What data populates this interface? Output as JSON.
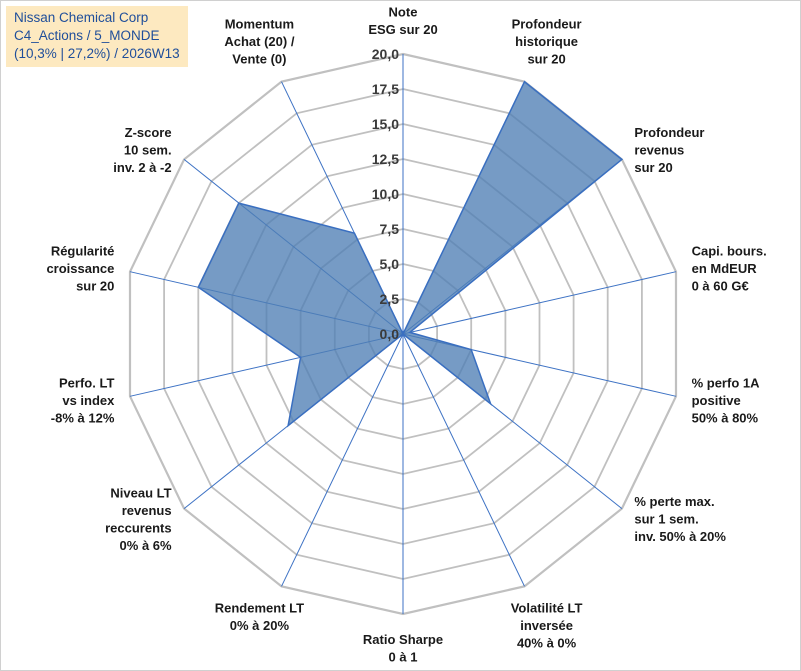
{
  "title": {
    "line1": "Nissan Chemical Corp",
    "line2": "C4_Actions / 5_MONDE",
    "line3": "(10,3% | 27,2%) / 2026W13"
  },
  "colors": {
    "fill": "#4f7fb5",
    "stroke": "#3a6fc0",
    "grid": "#c0c0c0",
    "spoke": "#3d72c4",
    "title_bg": "#fde9c0",
    "title_text": "#1f4e9a"
  },
  "chart_data": {
    "type": "radar",
    "range": [
      0,
      20
    ],
    "ticks": [
      "0,0",
      "2,5",
      "5,0",
      "7,5",
      "10,0",
      "12,5",
      "15,0",
      "17,5",
      "20,0"
    ],
    "tick_values": [
      0,
      2.5,
      5,
      7.5,
      10,
      12.5,
      15,
      17.5,
      20
    ],
    "axes": [
      {
        "id": "esg",
        "label": [
          "Note",
          "ESG sur 20"
        ],
        "value": 0
      },
      {
        "id": "prof-hist",
        "label": [
          "Profondeur",
          "historique",
          "sur 20"
        ],
        "value": 20
      },
      {
        "id": "prof-rev",
        "label": [
          "Profondeur",
          "revenus",
          "sur 20"
        ],
        "value": 20
      },
      {
        "id": "capi",
        "label": [
          "Capi. bours.",
          "en MdEUR",
          "0 à 60 G€"
        ],
        "value": 0.5
      },
      {
        "id": "perf1a",
        "label": [
          "% perfo 1A",
          "positive",
          "50% à 80%"
        ],
        "value": 5
      },
      {
        "id": "perte-max",
        "label": [
          "% perte max.",
          "sur 1 sem.",
          "inv. 50% à 20%"
        ],
        "value": 8
      },
      {
        "id": "volat",
        "label": [
          "Volatilité LT",
          "inversée",
          "40% à 0%"
        ],
        "value": 0
      },
      {
        "id": "sharpe",
        "label": [
          "Ratio Sharpe",
          "0 à 1"
        ],
        "value": 0
      },
      {
        "id": "rendement",
        "label": [
          "Rendement LT",
          "0% à 20%"
        ],
        "value": 0
      },
      {
        "id": "niveau-rev",
        "label": [
          "Niveau LT",
          "revenus",
          "reccurents",
          "0% à 6%"
        ],
        "value": 10.5
      },
      {
        "id": "perf-lt",
        "label": [
          "Perfo. LT",
          "vs index",
          "-8% à 12%"
        ],
        "value": 7.5
      },
      {
        "id": "regularite",
        "label": [
          "Régularité",
          "croissance",
          "sur 20"
        ],
        "value": 15
      },
      {
        "id": "zscore",
        "label": [
          "Z-score",
          "10 sem.",
          "inv. 2 à -2"
        ],
        "value": 15
      },
      {
        "id": "momentum",
        "label": [
          "Momentum",
          "Achat (20) /",
          "Vente (0)"
        ],
        "value": 8
      }
    ]
  }
}
